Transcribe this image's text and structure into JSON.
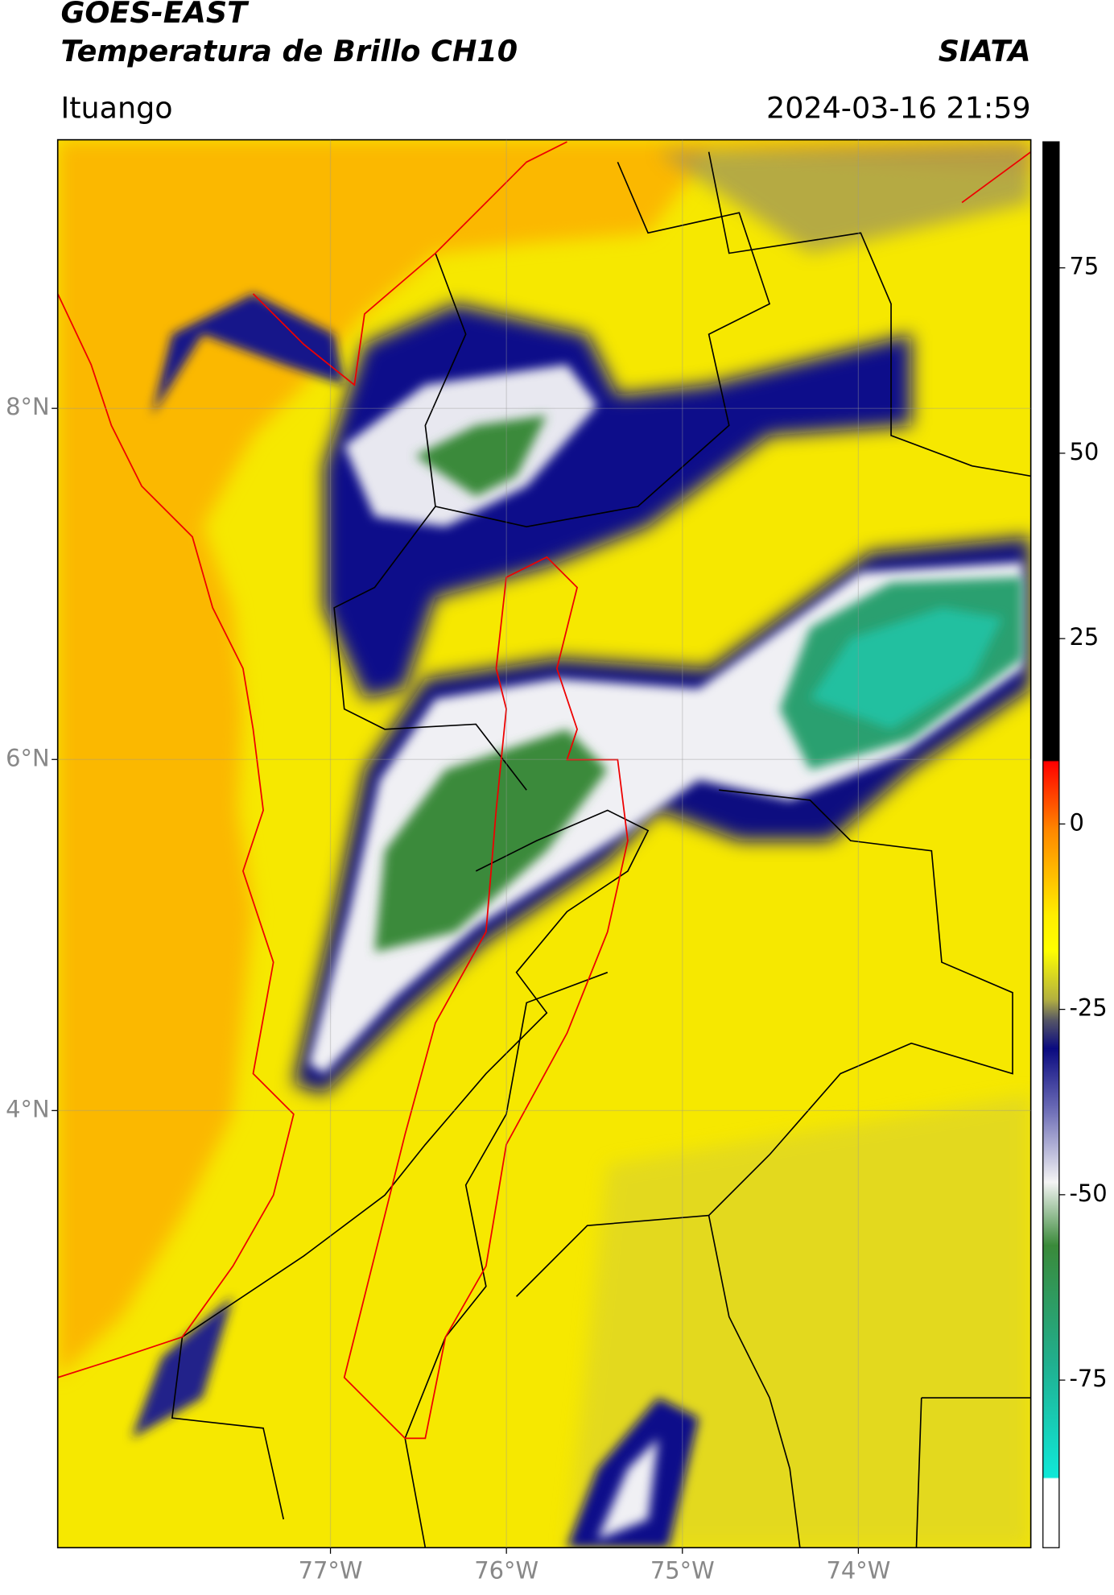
{
  "chart_data": {
    "type": "map",
    "title": "GOES-EAST",
    "subtitle": "Temperatura de Brillo CH10",
    "source": "SIATA",
    "location": "Ituango",
    "datetime": "2024-03-16 21:59",
    "xlim": [
      -78.55,
      -73.02
    ],
    "ylim": [
      1.51,
      9.53
    ],
    "xticks": [
      {
        "value": -77,
        "label": "77°W"
      },
      {
        "value": -76,
        "label": "76°W"
      },
      {
        "value": -75,
        "label": "75°W"
      },
      {
        "value": -74,
        "label": "74°W"
      }
    ],
    "yticks": [
      {
        "value": 8,
        "label": "8°N"
      },
      {
        "value": 6,
        "label": "6°N"
      },
      {
        "value": 4,
        "label": "4°N"
      }
    ],
    "grid": true,
    "colorbar": {
      "lim": [
        -97.6,
        92
      ],
      "ticks": [
        75,
        50,
        25,
        0,
        -25,
        -50,
        -75
      ]
    }
  }
}
